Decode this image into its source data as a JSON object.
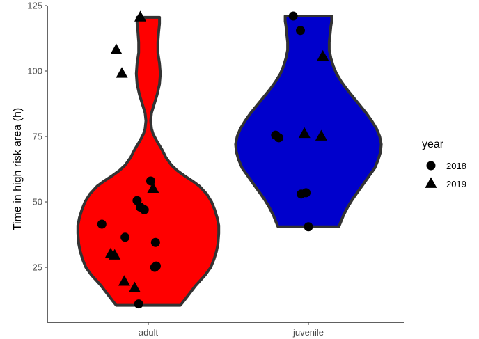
{
  "chart_data": {
    "type": "violin",
    "xlabel": "",
    "ylabel": "Time in high risk area (h)",
    "ylim": [
      4,
      125
    ],
    "yticks": [
      25,
      50,
      75,
      100,
      125
    ],
    "categories": [
      "adult",
      "juvenile"
    ],
    "grid": false,
    "legend": {
      "title": "year",
      "placement": "right",
      "entries": [
        {
          "label": "2018",
          "shape": "circle"
        },
        {
          "label": "2019",
          "shape": "triangle"
        }
      ]
    },
    "violins": [
      {
        "category": "adult",
        "fill": "#ff0000",
        "range": [
          10.5,
          120.5
        ],
        "profile": [
          [
            10.5,
            0.4
          ],
          [
            12,
            0.44
          ],
          [
            14,
            0.49
          ],
          [
            16,
            0.54
          ],
          [
            18,
            0.59
          ],
          [
            20,
            0.65
          ],
          [
            22,
            0.71
          ],
          [
            25,
            0.78
          ],
          [
            28,
            0.82
          ],
          [
            31,
            0.85
          ],
          [
            34,
            0.87
          ],
          [
            38,
            0.88
          ],
          [
            41,
            0.88
          ],
          [
            44,
            0.86
          ],
          [
            47,
            0.83
          ],
          [
            50,
            0.79
          ],
          [
            53,
            0.73
          ],
          [
            56,
            0.64
          ],
          [
            58,
            0.55
          ],
          [
            60,
            0.45
          ],
          [
            62,
            0.36
          ],
          [
            64,
            0.29
          ],
          [
            67,
            0.22
          ],
          [
            70,
            0.17
          ],
          [
            73,
            0.11
          ],
          [
            76,
            0.06
          ],
          [
            78,
            0.04
          ],
          [
            81,
            0.03
          ],
          [
            84,
            0.04
          ],
          [
            87,
            0.07
          ],
          [
            91,
            0.11
          ],
          [
            95,
            0.14
          ],
          [
            99,
            0.15
          ],
          [
            103,
            0.14
          ],
          [
            107,
            0.12
          ],
          [
            111,
            0.12
          ],
          [
            115,
            0.13
          ],
          [
            118,
            0.14
          ],
          [
            120.5,
            0.14
          ]
        ]
      },
      {
        "category": "juvenile",
        "fill": "#0000cc",
        "range": [
          40.5,
          121
        ],
        "profile": [
          [
            40.5,
            0.38
          ],
          [
            42,
            0.4
          ],
          [
            45,
            0.44
          ],
          [
            48,
            0.49
          ],
          [
            51,
            0.55
          ],
          [
            54,
            0.62
          ],
          [
            57,
            0.69
          ],
          [
            60,
            0.76
          ],
          [
            63,
            0.83
          ],
          [
            66,
            0.87
          ],
          [
            69,
            0.9
          ],
          [
            72,
            0.91
          ],
          [
            75,
            0.89
          ],
          [
            78,
            0.85
          ],
          [
            81,
            0.79
          ],
          [
            84,
            0.72
          ],
          [
            87,
            0.64
          ],
          [
            90,
            0.56
          ],
          [
            93,
            0.48
          ],
          [
            96,
            0.41
          ],
          [
            99,
            0.35
          ],
          [
            102,
            0.31
          ],
          [
            105,
            0.28
          ],
          [
            108,
            0.26
          ],
          [
            111,
            0.26
          ],
          [
            114,
            0.27
          ],
          [
            117,
            0.28
          ],
          [
            119,
            0.29
          ],
          [
            121,
            0.29
          ]
        ]
      }
    ],
    "points": [
      {
        "category": "adult",
        "offset": -0.1,
        "y": 120.5,
        "year": "2019"
      },
      {
        "category": "adult",
        "offset": -0.4,
        "y": 108,
        "year": "2019"
      },
      {
        "category": "adult",
        "offset": -0.33,
        "y": 99,
        "year": "2019"
      },
      {
        "category": "adult",
        "offset": 0.03,
        "y": 58,
        "year": "2018"
      },
      {
        "category": "adult",
        "offset": 0.06,
        "y": 55,
        "year": "2019"
      },
      {
        "category": "adult",
        "offset": -0.14,
        "y": 50.5,
        "year": "2018"
      },
      {
        "category": "adult",
        "offset": -0.1,
        "y": 48,
        "year": "2018"
      },
      {
        "category": "adult",
        "offset": -0.05,
        "y": 47,
        "year": "2018"
      },
      {
        "category": "adult",
        "offset": -0.58,
        "y": 41.5,
        "year": "2018"
      },
      {
        "category": "adult",
        "offset": -0.29,
        "y": 36.5,
        "year": "2018"
      },
      {
        "category": "adult",
        "offset": 0.09,
        "y": 34.5,
        "year": "2018"
      },
      {
        "category": "adult",
        "offset": -0.47,
        "y": 30,
        "year": "2019"
      },
      {
        "category": "adult",
        "offset": -0.42,
        "y": 29.5,
        "year": "2019"
      },
      {
        "category": "adult",
        "offset": 0.1,
        "y": 25.5,
        "year": "2018"
      },
      {
        "category": "adult",
        "offset": 0.08,
        "y": 25,
        "year": "2018"
      },
      {
        "category": "adult",
        "offset": -0.3,
        "y": 19.5,
        "year": "2019"
      },
      {
        "category": "adult",
        "offset": -0.17,
        "y": 17,
        "year": "2019"
      },
      {
        "category": "adult",
        "offset": -0.12,
        "y": 11,
        "year": "2018"
      },
      {
        "category": "juvenile",
        "offset": -0.19,
        "y": 121,
        "year": "2018"
      },
      {
        "category": "juvenile",
        "offset": -0.1,
        "y": 115.5,
        "year": "2018"
      },
      {
        "category": "juvenile",
        "offset": 0.18,
        "y": 105.5,
        "year": "2019"
      },
      {
        "category": "juvenile",
        "offset": -0.05,
        "y": 76,
        "year": "2019"
      },
      {
        "category": "juvenile",
        "offset": 0.16,
        "y": 75,
        "year": "2019"
      },
      {
        "category": "juvenile",
        "offset": -0.41,
        "y": 75.5,
        "year": "2018"
      },
      {
        "category": "juvenile",
        "offset": -0.37,
        "y": 74.5,
        "year": "2018"
      },
      {
        "category": "juvenile",
        "offset": -0.03,
        "y": 53.5,
        "year": "2018"
      },
      {
        "category": "juvenile",
        "offset": -0.09,
        "y": 53,
        "year": "2018"
      },
      {
        "category": "juvenile",
        "offset": 0.0,
        "y": 40.5,
        "year": "2018"
      }
    ]
  }
}
